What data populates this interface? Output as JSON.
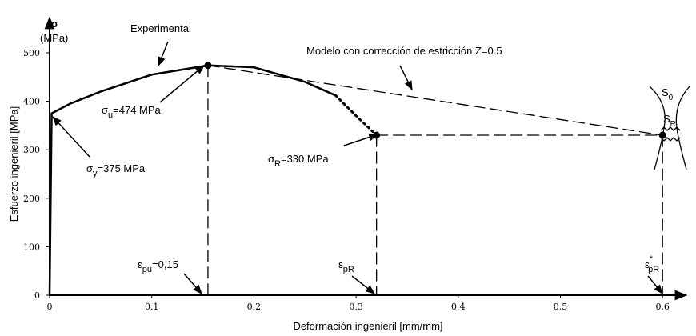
{
  "chart_data": {
    "type": "line",
    "xlabel": "Deformación ingenieril [mm/mm]",
    "ylabel": "Esfuerzo ingenieril [MPa]",
    "y_symbol": "σ",
    "y_unit": "(MPa)",
    "xlim": [
      0,
      0.62
    ],
    "ylim": [
      0,
      560
    ],
    "xticks": [
      0,
      0.1,
      0.2,
      0.3,
      0.4,
      0.5,
      0.6
    ],
    "yticks": [
      0,
      100,
      200,
      300,
      400,
      500
    ],
    "series": [
      {
        "name": "Experimental",
        "color": "#000000",
        "style": "solid",
        "x": [
          0,
          0.002,
          0.02,
          0.05,
          0.1,
          0.155,
          0.2,
          0.25,
          0.28
        ],
        "values": [
          0,
          375,
          395,
          420,
          455,
          474,
          470,
          440,
          412
        ]
      },
      {
        "color": "#000000",
        "style": "dotted",
        "x": [
          0.28,
          0.3,
          0.32
        ],
        "values": [
          412,
          370,
          330
        ]
      },
      {
        "name": "Modelo con corrección de estricción Z=0.5",
        "color": "#000000",
        "style": "dashed",
        "x": [
          0.155,
          0.6
        ],
        "values": [
          474,
          330
        ]
      },
      {
        "color": "#000000",
        "style": "dashed",
        "x": [
          0.32,
          0.6
        ],
        "values": [
          330,
          330
        ]
      },
      {
        "color": "#000000",
        "style": "dashed",
        "x": [
          0.155,
          0.155
        ],
        "values": [
          474,
          0
        ]
      },
      {
        "color": "#000000",
        "style": "dashed",
        "x": [
          0.32,
          0.32
        ],
        "values": [
          330,
          0
        ]
      },
      {
        "color": "#000000",
        "style": "dashed",
        "x": [
          0.6,
          0.6
        ],
        "values": [
          330,
          0
        ]
      }
    ],
    "markers": {
      "x": [
        0.155,
        0.32,
        0.6
      ],
      "values": [
        474,
        330,
        330
      ]
    },
    "annotations": [
      {
        "base": "Experimental"
      },
      {
        "base": "Modelo con corrección de estricción Z=0.5"
      },
      {
        "base": "σ",
        "sub": "u",
        "rest": "=474 MPa"
      },
      {
        "base": "σ",
        "sub": "y",
        "rest": "=375 MPa"
      },
      {
        "base": "σ",
        "sub": "R",
        "rest": "=330 MPa"
      },
      {
        "base": "ε",
        "sub": "pu",
        "rest": "=0,15"
      },
      {
        "base": "ε",
        "sub": "pR"
      },
      {
        "base": "ε",
        "sup": "*",
        "sub": "pR"
      },
      {
        "base": "S",
        "sub": "0"
      },
      {
        "base": "S",
        "sub": "R"
      }
    ]
  }
}
